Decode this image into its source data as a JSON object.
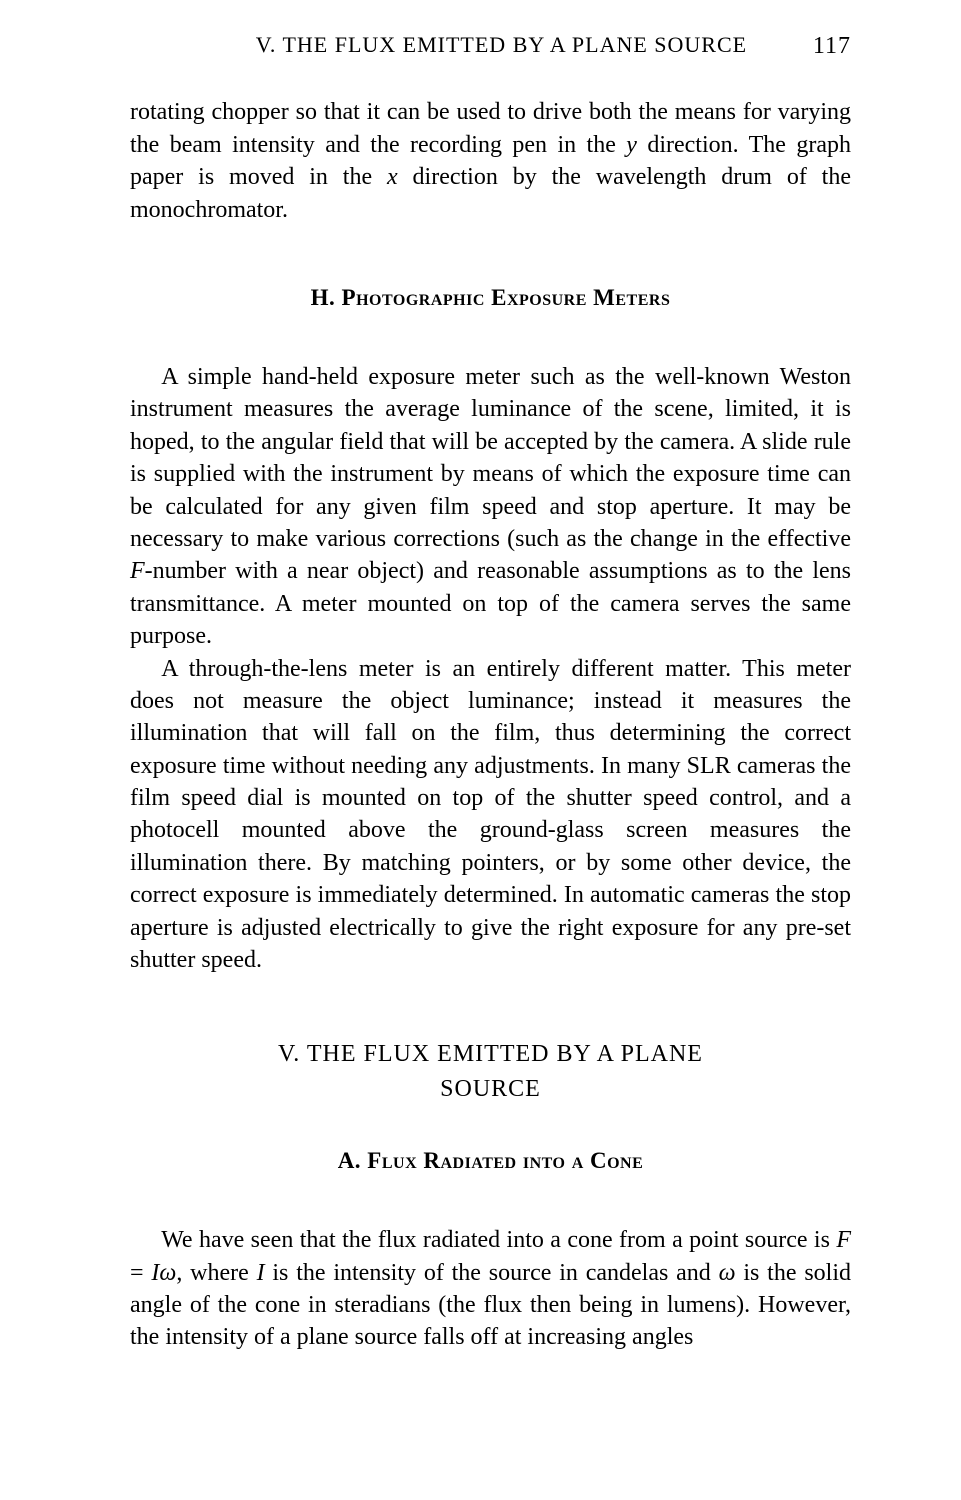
{
  "header": {
    "running_head": "V. THE FLUX EMITTED BY A PLANE SOURCE",
    "page_number": "117"
  },
  "para1": "rotating chopper so that it can be used to drive both the means for varying the beam intensity and the recording pen in the ",
  "para1_italic_y": "y",
  "para1_cont1": " direction. The graph paper is moved in the ",
  "para1_italic_x": "x",
  "para1_cont2": " direction by the wavelength drum of the monochromator.",
  "heading_h": "H. Photographic Exposure Meters",
  "para2": "A simple hand-held exposure meter such as the well-known Weston instrument measures the average luminance of the scene, limited, it is hoped, to the angular field that will be accepted by the camera. A slide rule is supplied with the instrument by means of which the exposure time can be calculated for any given film speed and stop aperture. It may be necessary to make various corrections (such as the change in the effective ",
  "para2_italic_F": "F",
  "para2_cont": "-number with a near object) and reasonable assumptions as to the lens transmittance. A meter mounted on top of the camera serves the same purpose.",
  "para3": "A through-the-lens meter is an entirely different matter. This meter does not measure the object luminance; instead it measures the illumination that will fall on the film, thus determining the correct exposure time without needing any adjustments. In many SLR cameras the film speed dial is mounted on top of the shutter speed control, and a photocell mounted above the ground-glass screen measures the illumination there. By matching pointers, or by some other device, the correct exposure is immediately determined. In automatic cameras the stop aperture is adjusted electrically to give the right exposure for any pre-set shutter speed.",
  "heading_v_line1": "V. THE FLUX EMITTED BY A PLANE",
  "heading_v_line2": "SOURCE",
  "heading_a": "A. Flux Radiated into a Cone",
  "para4_a": "We have seen that the flux radiated into a cone from a point source is ",
  "para4_eq_F": "F",
  "para4_eq_eq": " = ",
  "para4_eq_I": "I",
  "para4_eq_omega": "ω",
  "para4_b": ", where ",
  "para4_I2": "I",
  "para4_c": " is the intensity of the source in candelas and ",
  "para4_omega2": "ω",
  "para4_d": " is the solid angle of the cone in steradians (the flux then being in lumens). However, the intensity of a plane source falls off at increasing angles"
}
